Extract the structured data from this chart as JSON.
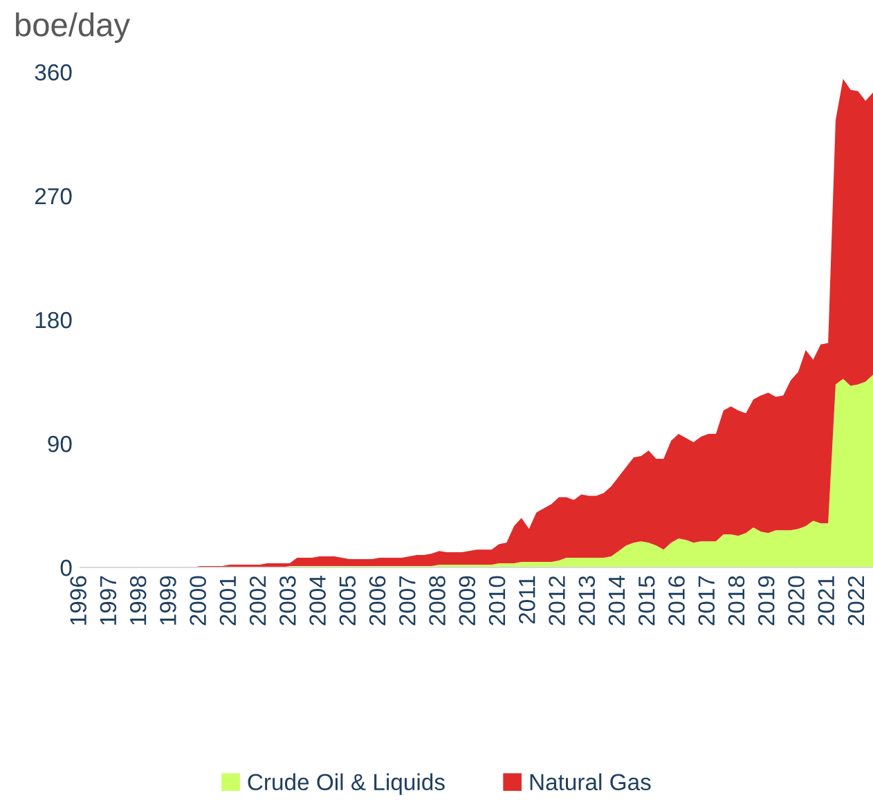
{
  "chart_data": {
    "type": "area",
    "stacked": true,
    "ylabel": "boe/day",
    "x": [
      1996,
      1999.75,
      2000,
      2000.25,
      2000.5,
      2000.75,
      2001,
      2001.25,
      2001.5,
      2001.75,
      2002,
      2002.25,
      2002.5,
      2002.75,
      2003,
      2003.25,
      2003.5,
      2003.75,
      2004,
      2004.25,
      2004.5,
      2004.75,
      2005,
      2005.25,
      2005.5,
      2005.75,
      2006,
      2006.25,
      2006.5,
      2006.75,
      2007,
      2007.25,
      2007.5,
      2007.75,
      2008,
      2008.25,
      2008.5,
      2008.75,
      2009,
      2009.25,
      2009.5,
      2009.75,
      2010,
      2010.25,
      2010.5,
      2010.75,
      2011,
      2011.25,
      2011.5,
      2011.75,
      2012,
      2012.25,
      2012.5,
      2012.75,
      2013,
      2013.25,
      2013.5,
      2013.75,
      2014,
      2014.25,
      2014.5,
      2014.75,
      2015,
      2015.25,
      2015.5,
      2015.75,
      2016,
      2016.25,
      2016.5,
      2016.75,
      2017,
      2017.25,
      2017.5,
      2017.75,
      2018,
      2018.25,
      2018.5,
      2018.75,
      2019,
      2019.25,
      2019.5,
      2019.75,
      2020,
      2020.25,
      2020.5,
      2020.75,
      2021,
      2021.25,
      2021.5,
      2021.75,
      2022,
      2022.25,
      2022.5
    ],
    "series": [
      {
        "name": "Crude Oil & Liquids",
        "color": "#ccff66",
        "values": [
          0,
          0,
          0,
          0,
          0,
          0,
          0,
          0,
          0,
          0,
          0,
          0,
          0,
          0,
          1,
          1,
          1,
          1,
          1,
          1,
          1,
          1,
          1,
          1,
          1,
          1,
          1,
          1,
          1,
          1,
          1,
          1,
          1,
          1,
          2,
          2,
          2,
          2,
          2,
          2,
          2,
          2,
          3,
          3,
          3,
          4,
          4,
          4,
          4,
          4,
          5,
          7,
          7,
          7,
          7,
          7,
          7,
          8,
          12,
          16,
          18,
          19,
          18,
          16,
          13,
          18,
          21,
          20,
          18,
          19,
          19,
          19,
          24,
          24,
          23,
          25,
          29,
          26,
          25,
          27,
          27,
          27,
          28,
          30,
          34,
          32,
          32,
          133,
          137,
          132,
          133,
          135,
          140
        ]
      },
      {
        "name": "Natural Gas",
        "color": "#e02b2b",
        "values": [
          0,
          0,
          1,
          1,
          1,
          1,
          2,
          2,
          2,
          2,
          2,
          3,
          3,
          3,
          2,
          6,
          6,
          6,
          7,
          7,
          7,
          6,
          5,
          5,
          5,
          5,
          6,
          6,
          6,
          6,
          7,
          8,
          8,
          9,
          10,
          9,
          9,
          9,
          10,
          11,
          11,
          11,
          14,
          15,
          27,
          32,
          24,
          36,
          39,
          42,
          46,
          44,
          42,
          46,
          45,
          45,
          47,
          51,
          54,
          57,
          62,
          62,
          67,
          63,
          66,
          74,
          76,
          74,
          73,
          76,
          78,
          78,
          90,
          93,
          91,
          87,
          93,
          99,
          102,
          97,
          98,
          109,
          114,
          128,
          117,
          130,
          131,
          192,
          218,
          215,
          213,
          204,
          205
        ]
      }
    ],
    "xlim": [
      1996,
      2022.5
    ],
    "xticks": [
      1996,
      1997,
      1998,
      1999,
      2000,
      2001,
      2002,
      2003,
      2004,
      2005,
      2006,
      2007,
      2008,
      2009,
      2010,
      2011,
      2012,
      2013,
      2014,
      2015,
      2016,
      2017,
      2018,
      2019,
      2020,
      2021,
      2022
    ],
    "ylim": [
      0,
      360
    ],
    "yticks": [
      0,
      90,
      180,
      270,
      360
    ],
    "legend": "bottom"
  }
}
